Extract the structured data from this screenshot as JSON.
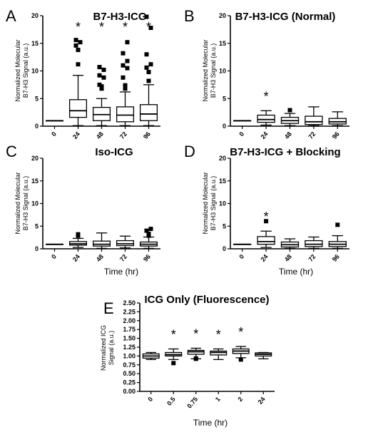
{
  "chart_data": [
    {
      "letter": "A",
      "title": "B7-H3-ICG",
      "type": "box",
      "ylabel_lines": [
        "Normalized Molecular",
        "B7-H3 Signal (a.u.)"
      ],
      "xlabel": "",
      "categories": [
        "0",
        "24",
        "48",
        "72",
        "96"
      ],
      "yticks": [
        "0",
        "5",
        "10",
        "15",
        "20"
      ],
      "ylim": [
        0,
        20
      ],
      "grid": false,
      "boxes": [
        {
          "min": 1,
          "q1": 1,
          "median": 1,
          "q3": 1,
          "max": 1,
          "outliers": [],
          "significant": false
        },
        {
          "min": 0.1,
          "q1": 1.6,
          "median": 2.8,
          "q3": 4.8,
          "max": 9.2,
          "outliers": [
            11.2,
            13.8,
            14.6,
            15.2,
            15.6
          ],
          "significant": true
        },
        {
          "min": 0.1,
          "q1": 1.0,
          "median": 2.1,
          "q3": 3.4,
          "max": 5.0,
          "outliers": [
            6.8,
            7.2,
            7.5,
            8.8,
            9.2,
            10.2,
            10.7
          ],
          "significant": true
        },
        {
          "min": 0.1,
          "q1": 0.8,
          "median": 2.0,
          "q3": 3.5,
          "max": 6.2,
          "outliers": [
            6.8,
            7.4,
            8.8,
            10.5,
            11.0,
            11.8,
            13.2,
            15.2
          ],
          "significant": true
        },
        {
          "min": 0.1,
          "q1": 1.0,
          "median": 2.2,
          "q3": 3.9,
          "max": 7.5,
          "outliers": [
            8.2,
            9.8,
            10.6,
            11.2,
            13.0,
            17.8,
            19.8
          ],
          "significant": true
        }
      ]
    },
    {
      "letter": "B",
      "title": "B7-H3-ICG (Normal)",
      "type": "box",
      "ylabel_lines": [
        "Normalized Molecular",
        "B7-H3 Signal (a.u.)"
      ],
      "xlabel": "",
      "categories": [
        "0",
        "24",
        "48",
        "72",
        "96"
      ],
      "yticks": [
        "0",
        "5",
        "10",
        "15",
        "20"
      ],
      "ylim": [
        0,
        20
      ],
      "grid": false,
      "boxes": [
        {
          "min": 1,
          "q1": 1,
          "median": 1,
          "q3": 1,
          "max": 1,
          "outliers": [],
          "significant": false
        },
        {
          "min": 0.2,
          "q1": 0.7,
          "median": 1.2,
          "q3": 2.0,
          "max": 2.8,
          "outliers": [],
          "significant": true
        },
        {
          "min": 0.1,
          "q1": 0.5,
          "median": 1.0,
          "q3": 1.6,
          "max": 2.3,
          "outliers": [
            2.9
          ],
          "significant": false
        },
        {
          "min": 0.1,
          "q1": 0.3,
          "median": 0.8,
          "q3": 1.8,
          "max": 3.5,
          "outliers": [],
          "significant": false
        },
        {
          "min": 0.1,
          "q1": 0.4,
          "median": 0.8,
          "q3": 1.4,
          "max": 2.6,
          "outliers": [],
          "significant": false
        }
      ]
    },
    {
      "letter": "C",
      "title": "Iso-ICG",
      "type": "box",
      "ylabel_lines": [
        "Normalized Molecular",
        "B7-H3 Signal (a.u.)"
      ],
      "xlabel": "Time (hr)",
      "categories": [
        "0",
        "24",
        "48",
        "72",
        "96"
      ],
      "yticks": [
        "0",
        "5",
        "10",
        "15",
        "20"
      ],
      "ylim": [
        0,
        20
      ],
      "grid": false,
      "boxes": [
        {
          "min": 1,
          "q1": 1,
          "median": 1,
          "q3": 1,
          "max": 1,
          "outliers": [],
          "significant": false
        },
        {
          "min": 0.3,
          "q1": 0.8,
          "median": 1.1,
          "q3": 1.6,
          "max": 2.3,
          "outliers": [
            2.9,
            3.2
          ],
          "significant": false
        },
        {
          "min": 0.1,
          "q1": 0.6,
          "median": 1.0,
          "q3": 1.7,
          "max": 3.5,
          "outliers": [],
          "significant": false
        },
        {
          "min": 0.2,
          "q1": 0.7,
          "median": 1.1,
          "q3": 1.8,
          "max": 2.8,
          "outliers": [],
          "significant": false
        },
        {
          "min": 0.1,
          "q1": 0.6,
          "median": 1.0,
          "q3": 1.5,
          "max": 2.6,
          "outliers": [
            2.9,
            3.3,
            4.0,
            4.4
          ],
          "significant": false
        }
      ]
    },
    {
      "letter": "D",
      "title": "B7-H3-ICG + Blocking",
      "type": "box",
      "ylabel_lines": [
        "Normalized Molecular",
        "B7-H3 Signal (a.u.)"
      ],
      "xlabel": "Time (hr)",
      "categories": [
        "0",
        "24",
        "48",
        "72",
        "96"
      ],
      "yticks": [
        "0",
        "5",
        "10",
        "15",
        "20"
      ],
      "ylim": [
        0,
        20
      ],
      "grid": false,
      "boxes": [
        {
          "min": 1,
          "q1": 1,
          "median": 1,
          "q3": 1,
          "max": 1,
          "outliers": [],
          "significant": false
        },
        {
          "min": 0.3,
          "q1": 1.0,
          "median": 1.6,
          "q3": 2.7,
          "max": 3.9,
          "outliers": [
            6.1
          ],
          "significant": true
        },
        {
          "min": 0.1,
          "q1": 0.4,
          "median": 0.9,
          "q3": 1.5,
          "max": 2.2,
          "outliers": [],
          "significant": false
        },
        {
          "min": 0.1,
          "q1": 0.5,
          "median": 1.0,
          "q3": 1.8,
          "max": 2.6,
          "outliers": [],
          "significant": false
        },
        {
          "min": 0.1,
          "q1": 0.5,
          "median": 1.0,
          "q3": 1.6,
          "max": 2.9,
          "outliers": [
            5.3
          ],
          "significant": false
        }
      ]
    },
    {
      "letter": "E",
      "title": "ICG Only (Fluorescence)",
      "type": "box",
      "ylabel_lines": [
        "Normalized ICG",
        "Signal (a.u.)"
      ],
      "xlabel": "Time (hr)",
      "categories": [
        "0",
        "0.5",
        "0.75",
        "1",
        "2",
        "24"
      ],
      "yticks": [
        "0.00",
        "0.25",
        "0.50",
        "0.75",
        "1.00",
        "1.25",
        "1.50",
        "1.75",
        "2.00",
        "2.25",
        "2.50"
      ],
      "ylim": [
        0,
        2.5
      ],
      "grid": false,
      "boxes": [
        {
          "min": 0.9,
          "q1": 0.94,
          "median": 1.0,
          "q3": 1.06,
          "max": 1.1,
          "outliers": [],
          "significant": false
        },
        {
          "min": 0.9,
          "q1": 1.0,
          "median": 1.04,
          "q3": 1.1,
          "max": 1.2,
          "outliers": [
            0.8
          ],
          "significant": true
        },
        {
          "min": 0.92,
          "q1": 1.05,
          "median": 1.12,
          "q3": 1.16,
          "max": 1.22,
          "outliers": [
            0.92,
            0.93
          ],
          "significant": true
        },
        {
          "min": 0.9,
          "q1": 1.03,
          "median": 1.1,
          "q3": 1.14,
          "max": 1.2,
          "outliers": [],
          "significant": true
        },
        {
          "min": 0.95,
          "q1": 1.07,
          "median": 1.14,
          "q3": 1.2,
          "max": 1.27,
          "outliers": [
            0.9
          ],
          "significant": true
        },
        {
          "min": 0.92,
          "q1": 1.0,
          "median": 1.05,
          "q3": 1.09,
          "max": 1.1,
          "outliers": [],
          "significant": false
        }
      ]
    }
  ],
  "significance_marker": "*"
}
